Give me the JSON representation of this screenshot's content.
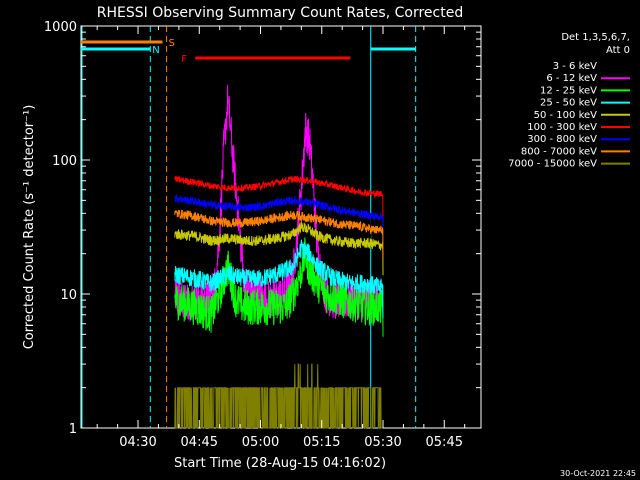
{
  "chart_data": {
    "type": "line",
    "title": "RHESSI Observing Summary Count Rates, Corrected",
    "xlabel": "Start Time (28-Aug-15 04:16:02)",
    "ylabel": "Corrected Count Rate (s⁻¹ detector⁻¹)",
    "xlim": [
      "04:16:02",
      "05:54:00"
    ],
    "ylim": [
      1,
      1000
    ],
    "yscale": "log",
    "x_ticks": [
      "04:30",
      "04:45",
      "05:00",
      "05:15",
      "05:30",
      "05:45"
    ],
    "x_tick_minutes": [
      30,
      45,
      60,
      75,
      90,
      105
    ],
    "y_ticks": [
      "1",
      "10",
      "100",
      "1000"
    ],
    "y_tick_values": [
      1,
      10,
      100,
      1000
    ],
    "legend_header": [
      "Det 1,3,5,6,7,",
      "Att 0"
    ],
    "legend_position": "right",
    "footer_timestamp": "30-Oct-2021 22:45",
    "data_window_minutes": [
      39,
      90
    ],
    "series": [
      {
        "name": "3 - 6 keV",
        "color": "#000000",
        "x_minutes": [
          39,
          44,
          48,
          50,
          52,
          54,
          56,
          58,
          62,
          66,
          70,
          72,
          74,
          76,
          78,
          82,
          86,
          90
        ],
        "values": [
          38,
          36,
          38,
          45,
          125,
          50,
          42,
          40,
          40,
          42,
          60,
          95,
          70,
          42,
          38,
          35,
          32,
          30
        ]
      },
      {
        "name": "6 - 12 keV",
        "color": "#ff00ff",
        "x_minutes": [
          39,
          42,
          45,
          47,
          49,
          50,
          51,
          52,
          54,
          56,
          58,
          62,
          66,
          68,
          70,
          71,
          72,
          73,
          74,
          76,
          78,
          82,
          86,
          90
        ],
        "values": [
          10,
          9,
          9,
          9,
          12,
          30,
          120,
          280,
          60,
          12,
          10,
          9,
          10,
          14,
          60,
          170,
          140,
          60,
          20,
          10,
          9,
          9,
          9,
          9
        ]
      },
      {
        "name": "12 - 25 keV",
        "color": "#00ff00",
        "x_minutes": [
          39,
          44,
          48,
          50,
          52,
          54,
          56,
          60,
          66,
          68,
          70,
          71,
          72,
          74,
          76,
          80,
          86,
          90
        ],
        "values": [
          9,
          8,
          7,
          10,
          16,
          9,
          8,
          8,
          8,
          10,
          15,
          20,
          15,
          12,
          10,
          9,
          8,
          8
        ]
      },
      {
        "name": "25 - 50 keV",
        "color": "#00ffff",
        "x_minutes": [
          39,
          44,
          48,
          52,
          56,
          60,
          64,
          68,
          70,
          72,
          74,
          78,
          82,
          86,
          90
        ],
        "values": [
          14,
          13,
          12,
          14,
          13,
          13,
          14,
          16,
          22,
          20,
          16,
          13,
          12,
          12,
          11
        ]
      },
      {
        "name": "50 - 100 keV",
        "color": "#c8c800",
        "x_minutes": [
          39,
          44,
          48,
          52,
          56,
          60,
          64,
          68,
          70,
          72,
          74,
          78,
          82,
          86,
          90
        ],
        "values": [
          28,
          27,
          25,
          26,
          25,
          25,
          26,
          28,
          32,
          30,
          27,
          25,
          24,
          24,
          23
        ]
      },
      {
        "name": "100 - 300 keV",
        "color": "#ff0000",
        "x_minutes": [
          39,
          44,
          48,
          52,
          56,
          60,
          64,
          68,
          72,
          76,
          80,
          84,
          88,
          90
        ],
        "values": [
          72,
          68,
          64,
          62,
          62,
          64,
          68,
          72,
          70,
          66,
          62,
          58,
          56,
          56
        ]
      },
      {
        "name": "300 - 800 keV",
        "color": "#0000ff",
        "x_minutes": [
          39,
          44,
          48,
          52,
          56,
          60,
          64,
          68,
          72,
          76,
          80,
          84,
          88,
          90
        ],
        "values": [
          52,
          49,
          46,
          45,
          44,
          45,
          48,
          50,
          48,
          45,
          42,
          40,
          38,
          38
        ]
      },
      {
        "name": "800 - 7000 keV",
        "color": "#ff8000",
        "x_minutes": [
          39,
          44,
          48,
          52,
          56,
          60,
          64,
          68,
          72,
          76,
          80,
          84,
          88,
          90
        ],
        "values": [
          40,
          38,
          35,
          34,
          34,
          35,
          37,
          39,
          37,
          35,
          33,
          32,
          30,
          30
        ]
      },
      {
        "name": "7000 - 15000 keV",
        "color": "#808000",
        "x_minutes": [
          39,
          90
        ],
        "values": [
          1.5,
          1.5
        ]
      }
    ],
    "flags": [
      {
        "label": "S",
        "color": "#ff8000",
        "start_min": 16,
        "end_min": 36
      },
      {
        "label": "F",
        "color": "#ff0000",
        "start_min": 44,
        "end_min": 82
      }
    ],
    "night_bars": [
      {
        "label": "N",
        "color": "#00ffff",
        "start_min": 16,
        "end_min": 33
      },
      {
        "label": "",
        "color": "#00ffff",
        "start_min": 87,
        "end_min": 98
      }
    ],
    "vertical_markers": [
      {
        "color": "#00ffff",
        "style": "dashed",
        "x_min": 33
      },
      {
        "color": "#ff8000",
        "style": "dashed",
        "x_min": 37
      },
      {
        "color": "#00ffff",
        "style": "solid",
        "x_min": 87
      },
      {
        "color": "#00ffff",
        "style": "dashed",
        "x_min": 98
      }
    ]
  }
}
